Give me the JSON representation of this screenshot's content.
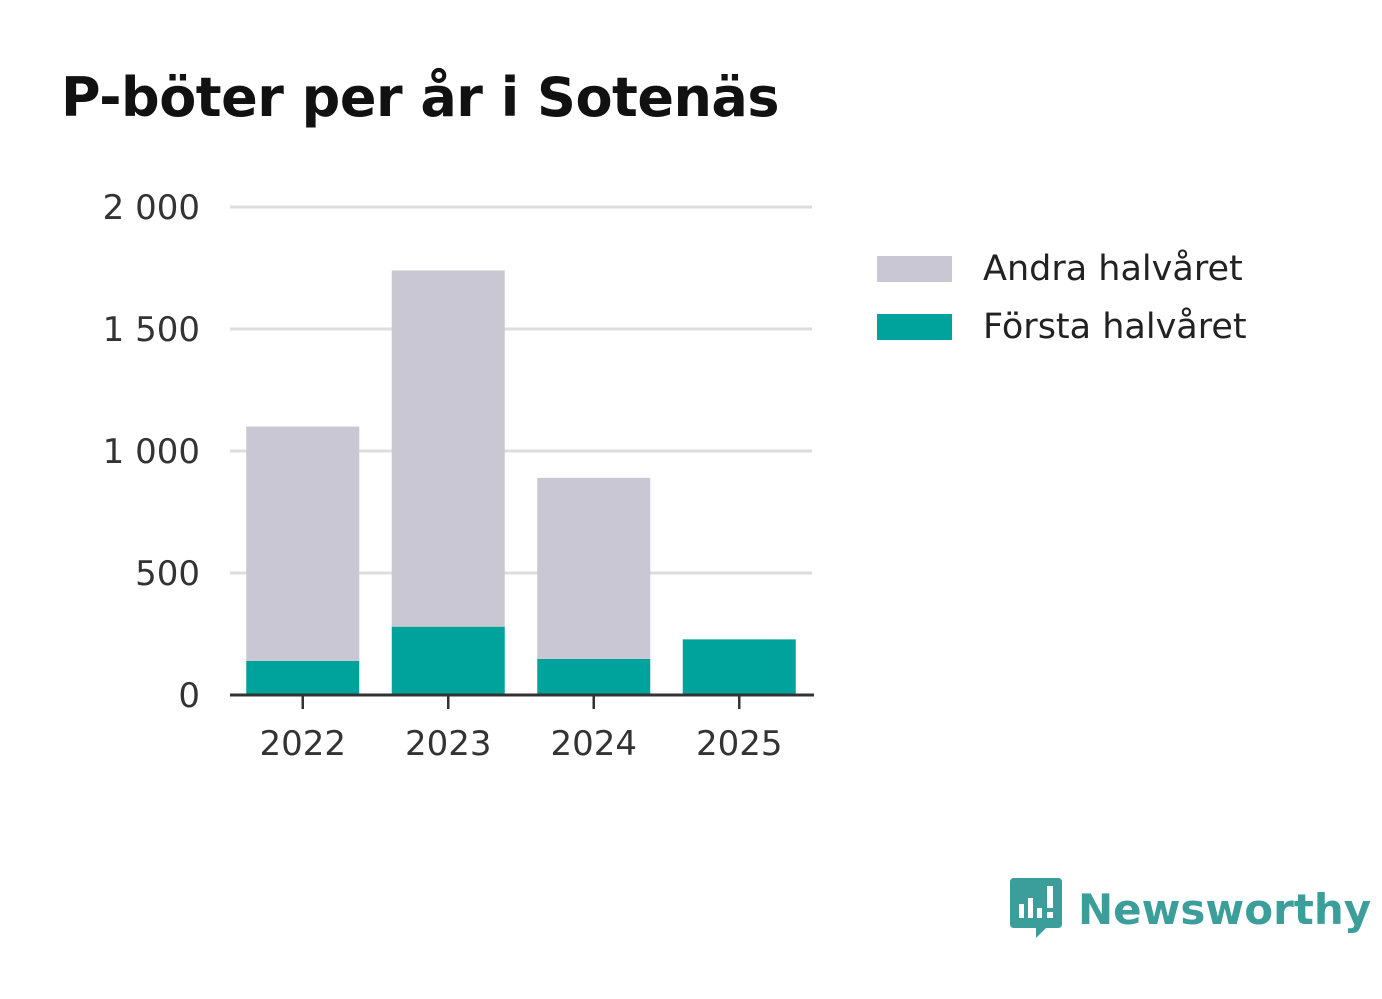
{
  "chart_data": {
    "type": "bar",
    "stacked": true,
    "title": "P-böter per år i Sotenäs",
    "categories": [
      "2022",
      "2023",
      "2024",
      "2025"
    ],
    "series": [
      {
        "name": "Första halvåret",
        "color": "#00a39b",
        "values": [
          140,
          280,
          148,
          228
        ]
      },
      {
        "name": "Andra halvåret",
        "color": "#c8c7d3",
        "values": [
          960,
          1460,
          742,
          0
        ]
      }
    ],
    "ylim": [
      0,
      2000
    ],
    "yticks": [
      0,
      500,
      1000,
      1500,
      2000
    ],
    "ytick_labels": [
      "0",
      "500",
      "1 000",
      "1 500",
      "2 000"
    ],
    "grid": true,
    "legend_position": "right",
    "xlabel": "",
    "ylabel": ""
  },
  "legend": {
    "items": [
      {
        "label": "Andra halvåret",
        "color": "#c8c7d3"
      },
      {
        "label": "Första halvåret",
        "color": "#00a39b"
      }
    ]
  },
  "brand": {
    "name": "Newsworthy",
    "icon": "newsworthy-logo-icon",
    "color": "#3c9e9a"
  }
}
